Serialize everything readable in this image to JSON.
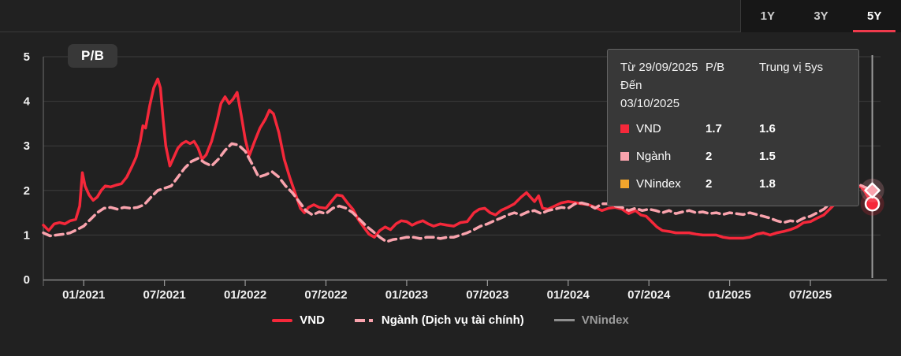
{
  "header": {
    "tabs": [
      {
        "label": "1Y",
        "active": false
      },
      {
        "label": "3Y",
        "active": false
      },
      {
        "label": "5Y",
        "active": true
      }
    ],
    "active_underline_color": "#ef3a4c"
  },
  "tooltip": {
    "date_from": "Từ 29/09/2025",
    "date_to": "Đến 03/10/2025",
    "col_pb": "P/B",
    "col_median": "Trung vị 5ys",
    "rows": [
      {
        "name": "VND",
        "color": "#f5283a",
        "pb": "1.7",
        "median": "1.6"
      },
      {
        "name": "Ngành",
        "color": "#f9a3ad",
        "pb": "2",
        "median": "1.5"
      },
      {
        "name": "VNindex",
        "color": "#f2a52c",
        "pb": "2",
        "median": "1.8"
      }
    ]
  },
  "legend": {
    "items": [
      {
        "label": "VND",
        "color": "#f5283a",
        "style": "solid",
        "dimmed": false
      },
      {
        "label": "Ngành (Dịch vụ tài chính)",
        "color": "#f9a3ad",
        "style": "dashed",
        "dimmed": false
      },
      {
        "label": "VNindex",
        "color": "#8f8f8f",
        "style": "solid",
        "dimmed": true
      }
    ]
  },
  "chart_data": {
    "type": "line",
    "title": "P/B",
    "ylim": [
      0,
      5
    ],
    "y_ticks": [
      0,
      1,
      2,
      3,
      4,
      5
    ],
    "x_domain_months": [
      0,
      61.8
    ],
    "x_tick_months": [
      3,
      9,
      15,
      21,
      27,
      33,
      39,
      45,
      51,
      57
    ],
    "x_tick_labels": [
      "01/2021",
      "07/2021",
      "01/2022",
      "07/2022",
      "01/2023",
      "07/2023",
      "01/2024",
      "07/2024",
      "01/2025",
      "07/2025"
    ],
    "grid_color": "#3d3d3d",
    "crosshair": {
      "month": 61.6,
      "color": "#9e9e9e"
    },
    "series": [
      {
        "name": "VND",
        "color": "#f5283a",
        "style": "solid",
        "visible": true,
        "end_marker": {
          "shape": "circle",
          "month": 61.6,
          "value": 1.7
        },
        "points": [
          [
            0,
            1.22
          ],
          [
            0.4,
            1.1
          ],
          [
            0.8,
            1.25
          ],
          [
            1.2,
            1.28
          ],
          [
            1.6,
            1.25
          ],
          [
            2,
            1.32
          ],
          [
            2.4,
            1.35
          ],
          [
            2.7,
            1.65
          ],
          [
            2.9,
            2.4
          ],
          [
            3.1,
            2.1
          ],
          [
            3.4,
            1.9
          ],
          [
            3.7,
            1.78
          ],
          [
            4,
            1.85
          ],
          [
            4.3,
            2.0
          ],
          [
            4.6,
            2.1
          ],
          [
            5,
            2.08
          ],
          [
            5.4,
            2.12
          ],
          [
            5.8,
            2.15
          ],
          [
            6.2,
            2.3
          ],
          [
            6.6,
            2.55
          ],
          [
            6.9,
            2.75
          ],
          [
            7.2,
            3.1
          ],
          [
            7.4,
            3.45
          ],
          [
            7.6,
            3.4
          ],
          [
            7.9,
            3.9
          ],
          [
            8.2,
            4.3
          ],
          [
            8.5,
            4.5
          ],
          [
            8.7,
            4.3
          ],
          [
            8.9,
            3.6
          ],
          [
            9.1,
            3.0
          ],
          [
            9.4,
            2.55
          ],
          [
            9.7,
            2.75
          ],
          [
            10,
            2.95
          ],
          [
            10.3,
            3.05
          ],
          [
            10.6,
            3.1
          ],
          [
            10.9,
            3.05
          ],
          [
            11.2,
            3.1
          ],
          [
            11.5,
            2.95
          ],
          [
            11.8,
            2.7
          ],
          [
            12.1,
            2.8
          ],
          [
            12.5,
            3.1
          ],
          [
            12.9,
            3.55
          ],
          [
            13.2,
            3.95
          ],
          [
            13.5,
            4.1
          ],
          [
            13.8,
            3.95
          ],
          [
            14.1,
            4.05
          ],
          [
            14.4,
            4.2
          ],
          [
            14.7,
            3.7
          ],
          [
            15,
            3.15
          ],
          [
            15.3,
            2.78
          ],
          [
            15.7,
            3.1
          ],
          [
            16.1,
            3.4
          ],
          [
            16.5,
            3.6
          ],
          [
            16.8,
            3.8
          ],
          [
            17.1,
            3.72
          ],
          [
            17.5,
            3.3
          ],
          [
            17.9,
            2.7
          ],
          [
            18.3,
            2.3
          ],
          [
            18.7,
            1.95
          ],
          [
            19.1,
            1.6
          ],
          [
            19.4,
            1.5
          ],
          [
            19.7,
            1.62
          ],
          [
            20.1,
            1.68
          ],
          [
            20.5,
            1.62
          ],
          [
            21,
            1.6
          ],
          [
            21.4,
            1.75
          ],
          [
            21.8,
            1.9
          ],
          [
            22.2,
            1.88
          ],
          [
            22.6,
            1.72
          ],
          [
            23,
            1.58
          ],
          [
            23.4,
            1.35
          ],
          [
            23.8,
            1.18
          ],
          [
            24.2,
            1.02
          ],
          [
            24.6,
            0.95
          ],
          [
            25,
            1.1
          ],
          [
            25.4,
            1.18
          ],
          [
            25.8,
            1.12
          ],
          [
            26.2,
            1.25
          ],
          [
            26.6,
            1.32
          ],
          [
            27,
            1.3
          ],
          [
            27.4,
            1.22
          ],
          [
            27.8,
            1.28
          ],
          [
            28.2,
            1.32
          ],
          [
            28.6,
            1.25
          ],
          [
            29,
            1.2
          ],
          [
            29.5,
            1.25
          ],
          [
            30,
            1.22
          ],
          [
            30.5,
            1.2
          ],
          [
            31,
            1.28
          ],
          [
            31.5,
            1.3
          ],
          [
            32,
            1.5
          ],
          [
            32.4,
            1.58
          ],
          [
            32.8,
            1.6
          ],
          [
            33.2,
            1.5
          ],
          [
            33.6,
            1.45
          ],
          [
            34,
            1.55
          ],
          [
            34.5,
            1.62
          ],
          [
            35,
            1.7
          ],
          [
            35.5,
            1.85
          ],
          [
            35.9,
            1.95
          ],
          [
            36.2,
            1.85
          ],
          [
            36.5,
            1.75
          ],
          [
            36.8,
            1.88
          ],
          [
            37.1,
            1.6
          ],
          [
            37.5,
            1.58
          ],
          [
            38,
            1.65
          ],
          [
            38.5,
            1.72
          ],
          [
            39,
            1.75
          ],
          [
            39.5,
            1.73
          ],
          [
            40,
            1.7
          ],
          [
            40.5,
            1.68
          ],
          [
            41,
            1.62
          ],
          [
            41.5,
            1.55
          ],
          [
            42,
            1.6
          ],
          [
            42.5,
            1.62
          ],
          [
            43,
            1.58
          ],
          [
            43.5,
            1.48
          ],
          [
            44,
            1.55
          ],
          [
            44.4,
            1.45
          ],
          [
            44.8,
            1.42
          ],
          [
            45.2,
            1.3
          ],
          [
            45.6,
            1.18
          ],
          [
            46,
            1.1
          ],
          [
            46.5,
            1.08
          ],
          [
            47,
            1.05
          ],
          [
            47.5,
            1.05
          ],
          [
            48,
            1.05
          ],
          [
            48.5,
            1.02
          ],
          [
            49,
            1.0
          ],
          [
            49.5,
            1.0
          ],
          [
            50,
            1.0
          ],
          [
            50.5,
            0.95
          ],
          [
            51,
            0.93
          ],
          [
            51.5,
            0.93
          ],
          [
            52,
            0.93
          ],
          [
            52.5,
            0.95
          ],
          [
            53,
            1.02
          ],
          [
            53.5,
            1.05
          ],
          [
            54,
            1.0
          ],
          [
            54.5,
            1.05
          ],
          [
            55,
            1.08
          ],
          [
            55.5,
            1.12
          ],
          [
            56,
            1.18
          ],
          [
            56.5,
            1.28
          ],
          [
            57,
            1.3
          ],
          [
            57.5,
            1.38
          ],
          [
            58,
            1.45
          ],
          [
            58.5,
            1.6
          ],
          [
            59,
            1.75
          ],
          [
            59.5,
            1.9
          ],
          [
            60,
            2.0
          ],
          [
            60.4,
            2.05
          ],
          [
            60.7,
            2.1
          ],
          [
            61,
            2.0
          ],
          [
            61.3,
            1.85
          ],
          [
            61.6,
            1.7
          ]
        ]
      },
      {
        "name": "Ngành (Dịch vụ tài chính)",
        "color": "#f9a3ad",
        "style": "dashed",
        "visible": true,
        "end_marker": {
          "shape": "diamond",
          "month": 61.6,
          "value": 2.0
        },
        "points": [
          [
            0,
            1.05
          ],
          [
            0.5,
            0.98
          ],
          [
            1,
            1.0
          ],
          [
            1.5,
            1.02
          ],
          [
            2,
            1.05
          ],
          [
            2.5,
            1.12
          ],
          [
            3,
            1.2
          ],
          [
            3.5,
            1.35
          ],
          [
            4,
            1.5
          ],
          [
            4.5,
            1.6
          ],
          [
            5,
            1.62
          ],
          [
            5.5,
            1.58
          ],
          [
            6,
            1.62
          ],
          [
            6.5,
            1.6
          ],
          [
            7,
            1.62
          ],
          [
            7.5,
            1.68
          ],
          [
            8,
            1.85
          ],
          [
            8.5,
            2.0
          ],
          [
            9,
            2.05
          ],
          [
            9.5,
            2.1
          ],
          [
            10,
            2.3
          ],
          [
            10.5,
            2.5
          ],
          [
            11,
            2.65
          ],
          [
            11.5,
            2.72
          ],
          [
            12,
            2.62
          ],
          [
            12.5,
            2.55
          ],
          [
            13,
            2.7
          ],
          [
            13.5,
            2.9
          ],
          [
            14,
            3.05
          ],
          [
            14.5,
            3.02
          ],
          [
            15,
            2.88
          ],
          [
            15.5,
            2.6
          ],
          [
            16,
            2.3
          ],
          [
            16.5,
            2.35
          ],
          [
            17,
            2.42
          ],
          [
            17.5,
            2.3
          ],
          [
            18,
            2.1
          ],
          [
            18.5,
            1.95
          ],
          [
            19,
            1.75
          ],
          [
            19.5,
            1.55
          ],
          [
            20,
            1.45
          ],
          [
            20.5,
            1.52
          ],
          [
            21,
            1.48
          ],
          [
            21.5,
            1.6
          ],
          [
            22,
            1.65
          ],
          [
            22.5,
            1.6
          ],
          [
            23,
            1.5
          ],
          [
            23.5,
            1.35
          ],
          [
            24,
            1.2
          ],
          [
            24.5,
            1.08
          ],
          [
            25,
            0.95
          ],
          [
            25.5,
            0.85
          ],
          [
            26,
            0.9
          ],
          [
            26.5,
            0.92
          ],
          [
            27,
            0.95
          ],
          [
            27.5,
            0.95
          ],
          [
            28,
            0.92
          ],
          [
            28.5,
            0.95
          ],
          [
            29,
            0.95
          ],
          [
            29.5,
            0.92
          ],
          [
            30,
            0.95
          ],
          [
            30.5,
            0.95
          ],
          [
            31,
            1.0
          ],
          [
            31.5,
            1.05
          ],
          [
            32,
            1.12
          ],
          [
            32.5,
            1.2
          ],
          [
            33,
            1.25
          ],
          [
            33.5,
            1.32
          ],
          [
            34,
            1.38
          ],
          [
            34.5,
            1.45
          ],
          [
            35,
            1.5
          ],
          [
            35.5,
            1.45
          ],
          [
            36,
            1.52
          ],
          [
            36.5,
            1.55
          ],
          [
            37,
            1.48
          ],
          [
            37.5,
            1.55
          ],
          [
            38,
            1.58
          ],
          [
            38.5,
            1.62
          ],
          [
            39,
            1.6
          ],
          [
            39.5,
            1.7
          ],
          [
            40,
            1.72
          ],
          [
            40.5,
            1.68
          ],
          [
            41,
            1.6
          ],
          [
            41.5,
            1.7
          ],
          [
            42,
            1.7
          ],
          [
            42.5,
            1.65
          ],
          [
            43,
            1.62
          ],
          [
            43.5,
            1.55
          ],
          [
            44,
            1.6
          ],
          [
            44.5,
            1.55
          ],
          [
            45,
            1.58
          ],
          [
            45.5,
            1.55
          ],
          [
            46,
            1.5
          ],
          [
            46.5,
            1.55
          ],
          [
            47,
            1.48
          ],
          [
            47.5,
            1.52
          ],
          [
            48,
            1.55
          ],
          [
            48.5,
            1.5
          ],
          [
            49,
            1.52
          ],
          [
            49.5,
            1.48
          ],
          [
            50,
            1.5
          ],
          [
            50.5,
            1.46
          ],
          [
            51,
            1.5
          ],
          [
            51.5,
            1.48
          ],
          [
            52,
            1.46
          ],
          [
            52.5,
            1.5
          ],
          [
            53,
            1.46
          ],
          [
            53.5,
            1.42
          ],
          [
            54,
            1.38
          ],
          [
            54.5,
            1.32
          ],
          [
            55,
            1.28
          ],
          [
            55.5,
            1.32
          ],
          [
            56,
            1.3
          ],
          [
            56.5,
            1.38
          ],
          [
            57,
            1.42
          ],
          [
            57.5,
            1.5
          ],
          [
            58,
            1.58
          ],
          [
            58.5,
            1.72
          ],
          [
            59,
            1.88
          ],
          [
            59.5,
            2.0
          ],
          [
            60,
            2.1
          ],
          [
            60.5,
            2.15
          ],
          [
            61,
            2.08
          ],
          [
            61.6,
            2.0
          ]
        ]
      },
      {
        "name": "VNindex",
        "color": "#8f8f8f",
        "style": "solid",
        "visible": false,
        "points": []
      }
    ]
  }
}
